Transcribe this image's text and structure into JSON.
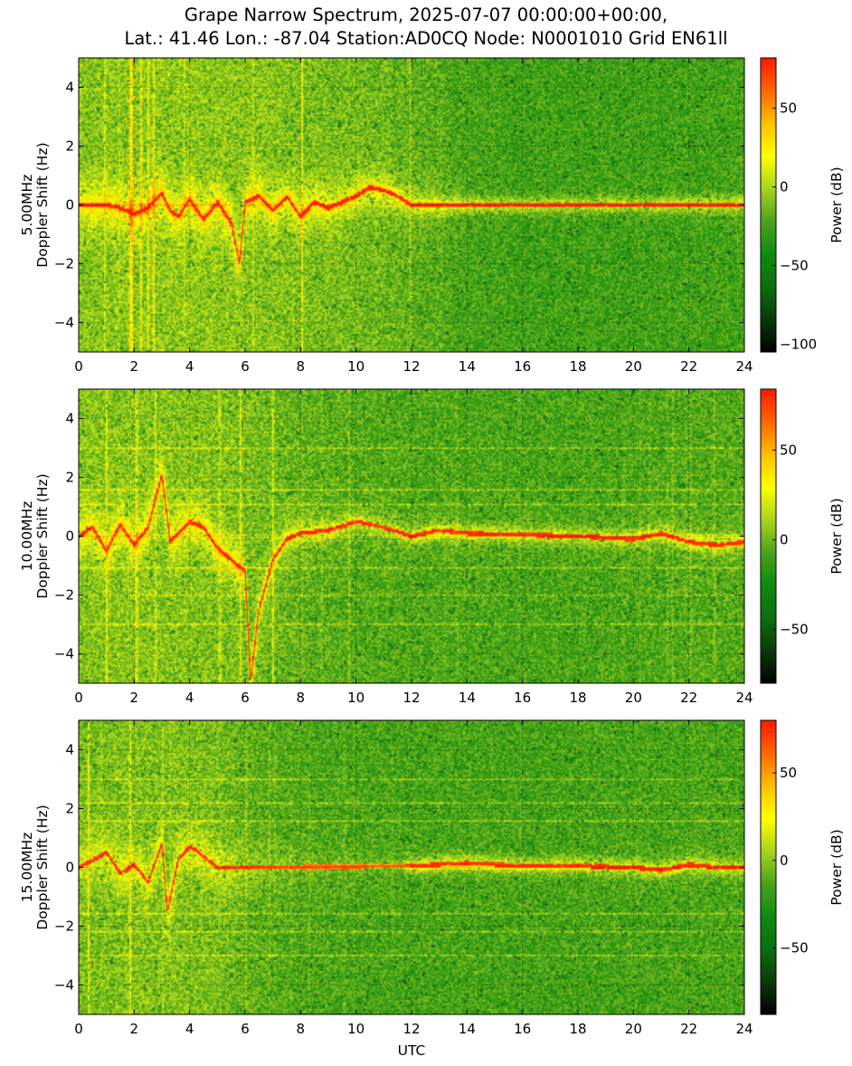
{
  "title_line1": "Grape Narrow Spectrum, 2025-07-07 00:00:00+00:00,",
  "title_line2": "Lat.: 41.46 Lon.: -87.04 Station:AD0CQ Node: N0001010 Grid EN61ll",
  "colors": {
    "colormap": [
      "#000000",
      "#0a3a0a",
      "#0e6e0e",
      "#0f8a0f",
      "#4aa31a",
      "#a8d41e",
      "#ffff00",
      "#ffbf00",
      "#ff6600",
      "#ff1a00"
    ],
    "background_green": "#0f8a0f",
    "ridge_yellow": "#ffff00",
    "trace_red": "#ff2a00"
  },
  "chart_data": [
    {
      "type": "heatmap",
      "frequency_label": "5.00MHz",
      "ylabel": "Doppler Shift (Hz)",
      "xlabel": "",
      "xlim": [
        0,
        24
      ],
      "ylim": [
        -5,
        5
      ],
      "xticks": [
        "0",
        "2",
        "4",
        "6",
        "8",
        "10",
        "12",
        "14",
        "16",
        "18",
        "20",
        "22",
        "24"
      ],
      "yticks": [
        "4",
        "2",
        "0",
        "−2",
        "−4"
      ],
      "grid": true,
      "colorbar": {
        "label": "Power (dB)",
        "range": [
          -105,
          82
        ],
        "ticks": [
          "50",
          "0",
          "−50",
          "−100"
        ],
        "tick_values": [
          50,
          0,
          -50,
          -100
        ]
      },
      "signal_trace": [
        [
          0,
          0
        ],
        [
          1,
          0
        ],
        [
          1.5,
          -0.1
        ],
        [
          2,
          -0.3
        ],
        [
          2.5,
          -0.1
        ],
        [
          3,
          0.4
        ],
        [
          3.3,
          -0.2
        ],
        [
          3.6,
          -0.4
        ],
        [
          4,
          0.2
        ],
        [
          4.5,
          -0.5
        ],
        [
          5,
          0.1
        ],
        [
          5.5,
          -0.6
        ],
        [
          5.8,
          -2.0
        ],
        [
          6,
          0.1
        ],
        [
          6.5,
          0.3
        ],
        [
          7,
          -0.2
        ],
        [
          7.5,
          0.3
        ],
        [
          8,
          -0.4
        ],
        [
          8.5,
          0.1
        ],
        [
          9,
          -0.1
        ],
        [
          9.5,
          0.1
        ],
        [
          10,
          0.3
        ],
        [
          10.5,
          0.6
        ],
        [
          11,
          0.5
        ],
        [
          11.5,
          0.3
        ],
        [
          12,
          0
        ],
        [
          24,
          0
        ]
      ],
      "noise_activity": [
        [
          0,
          55
        ],
        [
          2,
          62
        ],
        [
          4,
          62
        ],
        [
          6,
          58
        ],
        [
          8,
          50
        ],
        [
          10,
          44
        ],
        [
          11,
          38
        ],
        [
          12,
          28
        ],
        [
          13,
          20
        ],
        [
          14,
          8
        ],
        [
          16,
          2
        ],
        [
          20,
          2
        ],
        [
          23,
          4
        ],
        [
          24,
          6
        ]
      ],
      "ridge_activity": [
        [
          0,
          40
        ],
        [
          11,
          45
        ],
        [
          13,
          55
        ],
        [
          24,
          60
        ]
      ],
      "horizontal_lines": []
    },
    {
      "type": "heatmap",
      "frequency_label": "10.00MHz",
      "ylabel": "Doppler Shift (Hz)",
      "xlabel": "",
      "xlim": [
        0,
        24
      ],
      "ylim": [
        -5,
        5
      ],
      "xticks": [
        "0",
        "2",
        "4",
        "6",
        "8",
        "10",
        "12",
        "14",
        "16",
        "18",
        "20",
        "22",
        "24"
      ],
      "yticks": [
        "4",
        "2",
        "0",
        "−2",
        "−4"
      ],
      "grid": true,
      "colorbar": {
        "label": "Power (dB)",
        "range": [
          -80,
          84
        ],
        "ticks": [
          "50",
          "0",
          "−50"
        ],
        "tick_values": [
          50,
          0,
          -50
        ]
      },
      "signal_trace": [
        [
          0,
          0
        ],
        [
          0.5,
          0.3
        ],
        [
          1,
          -0.5
        ],
        [
          1.5,
          0.4
        ],
        [
          2,
          -0.3
        ],
        [
          2.5,
          0.3
        ],
        [
          3,
          2.1
        ],
        [
          3.3,
          -0.2
        ],
        [
          4,
          0.5
        ],
        [
          4.5,
          0.3
        ],
        [
          5,
          -0.4
        ],
        [
          5.5,
          -0.8
        ],
        [
          6,
          -1.2
        ],
        [
          6.2,
          -4.9
        ],
        [
          6.5,
          -2.5
        ],
        [
          7,
          -0.8
        ],
        [
          7.5,
          -0.1
        ],
        [
          8,
          0.1
        ],
        [
          9,
          0.2
        ],
        [
          10,
          0.5
        ],
        [
          11,
          0.3
        ],
        [
          12,
          0
        ],
        [
          13,
          0.2
        ],
        [
          14,
          0.1
        ],
        [
          16,
          0.05
        ],
        [
          18,
          0
        ],
        [
          20,
          -0.1
        ],
        [
          21,
          0.1
        ],
        [
          22,
          -0.2
        ],
        [
          23,
          -0.3
        ],
        [
          24,
          -0.2
        ]
      ],
      "noise_activity": [
        [
          0,
          55
        ],
        [
          2,
          58
        ],
        [
          4,
          55
        ],
        [
          6,
          50
        ],
        [
          8,
          30
        ],
        [
          10,
          20
        ],
        [
          12,
          15
        ],
        [
          14,
          12
        ],
        [
          16,
          10
        ],
        [
          18,
          10
        ],
        [
          20,
          12
        ],
        [
          22,
          18
        ],
        [
          24,
          18
        ]
      ],
      "ridge_activity": [
        [
          0,
          30
        ],
        [
          6,
          40
        ],
        [
          8,
          45
        ],
        [
          11,
          40
        ],
        [
          12,
          55
        ],
        [
          20,
          55
        ],
        [
          24,
          50
        ]
      ],
      "horizontal_lines": [
        3,
        1.6,
        1.1,
        -1.1,
        -2,
        -3
      ]
    },
    {
      "type": "heatmap",
      "frequency_label": "15.00MHz",
      "ylabel": "Doppler Shift (Hz)",
      "xlabel": "UTC",
      "xlim": [
        0,
        24
      ],
      "ylim": [
        -5,
        5
      ],
      "xticks": [
        "0",
        "2",
        "4",
        "6",
        "8",
        "10",
        "12",
        "14",
        "16",
        "18",
        "20",
        "22",
        "24"
      ],
      "yticks": [
        "4",
        "2",
        "0",
        "−2",
        "−4"
      ],
      "grid": true,
      "colorbar": {
        "label": "Power (dB)",
        "range": [
          -88,
          80
        ],
        "ticks": [
          "50",
          "0",
          "−50"
        ],
        "tick_values": [
          50,
          0,
          -50
        ]
      },
      "signal_trace": [
        [
          0,
          0
        ],
        [
          1,
          0.5
        ],
        [
          1.5,
          -0.2
        ],
        [
          2,
          0.1
        ],
        [
          2.5,
          -0.5
        ],
        [
          3,
          0.8
        ],
        [
          3.2,
          -1.5
        ],
        [
          3.6,
          0.3
        ],
        [
          4,
          0.7
        ],
        [
          4.2,
          0.6
        ],
        [
          5,
          0
        ],
        [
          11.8,
          0.05
        ],
        [
          13,
          0.1
        ],
        [
          14,
          0.15
        ],
        [
          15,
          0.1
        ],
        [
          16,
          0.05
        ],
        [
          18,
          0.05
        ],
        [
          20,
          0
        ],
        [
          21,
          -0.1
        ],
        [
          22,
          0.1
        ],
        [
          23,
          0
        ],
        [
          24,
          0
        ]
      ],
      "noise_activity": [
        [
          0,
          45
        ],
        [
          2,
          52
        ],
        [
          4,
          50
        ],
        [
          5,
          48
        ],
        [
          6,
          30
        ],
        [
          7,
          22
        ],
        [
          8,
          15
        ],
        [
          10,
          10
        ],
        [
          12,
          8
        ],
        [
          14,
          8
        ],
        [
          16,
          6
        ],
        [
          20,
          8
        ],
        [
          22,
          10
        ],
        [
          24,
          8
        ]
      ],
      "ridge_activity": [
        [
          0,
          10
        ],
        [
          11.5,
          12
        ],
        [
          12,
          60
        ],
        [
          20,
          60
        ],
        [
          24,
          55
        ]
      ],
      "horizontal_lines": [
        3,
        2.2,
        1.6,
        -1.6,
        -2.2,
        -3
      ]
    }
  ]
}
